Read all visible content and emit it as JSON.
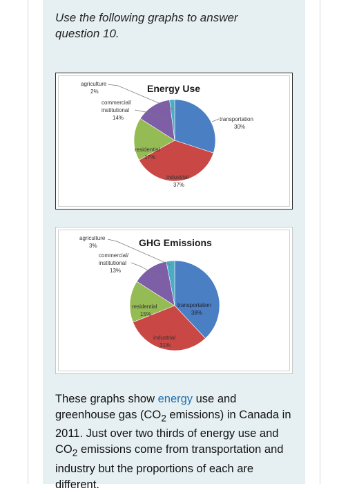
{
  "intro": "Use the following graphs to answer question 10.",
  "colors": {
    "industrial": "#c94744",
    "transportation": "#4a7fc3",
    "residential": "#95bb55",
    "commercial": "#7e5ea7",
    "agriculture": "#4bacc6"
  },
  "chart_data": [
    {
      "type": "pie",
      "title": "Energy Use",
      "slices": [
        {
          "label": "transportation",
          "value": 30
        },
        {
          "label": "industrial",
          "value": 37
        },
        {
          "label": "residential",
          "value": 17
        },
        {
          "label": "commercial/ institutional",
          "value": 14
        },
        {
          "label": "agriculture",
          "value": 2
        }
      ],
      "labels": {
        "agriculture": {
          "name": "agriculture",
          "pct": "2%"
        },
        "commercial_l1": "commercial/",
        "commercial_l2": "institutional",
        "commercial_pct": "14%",
        "transportation": {
          "name": "transportation",
          "pct": "30%"
        },
        "residential": {
          "name": "residential",
          "pct": "17%"
        },
        "industrial": {
          "name": "industrial",
          "pct": "37%"
        }
      }
    },
    {
      "type": "pie",
      "title": "GHG Emissions",
      "slices": [
        {
          "label": "transportation",
          "value": 38
        },
        {
          "label": "industrial",
          "value": 31
        },
        {
          "label": "residential",
          "value": 15
        },
        {
          "label": "commercial/ institutional",
          "value": 13
        },
        {
          "label": "agriculture",
          "value": 3
        }
      ],
      "labels": {
        "agriculture": {
          "name": "agriculture",
          "pct": "3%"
        },
        "commercial_l1": "commercial/",
        "commercial_l2": "institutional",
        "commercial_pct": "13%",
        "transportation": {
          "name": "transportation",
          "pct": "38%"
        },
        "residential": {
          "name": "residential",
          "pct": "15%"
        },
        "industrial": {
          "name": "industrial",
          "pct": "31%"
        }
      }
    }
  ],
  "paragraph": {
    "p1": "These graphs show ",
    "link": "energy",
    "p2": " use and greenhouse gas (CO",
    "sub1": "2",
    "p3": " emissions) in Canada in 2011. Just over two thirds of energy use and CO",
    "sub2": "2",
    "p4": " emissions come from transportation and industry but the proportions of each are different."
  }
}
